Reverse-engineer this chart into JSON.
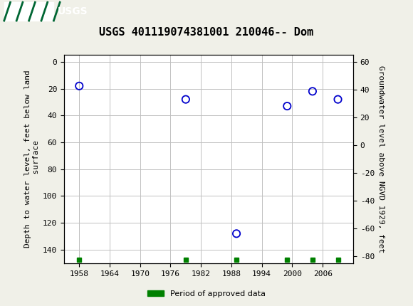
{
  "title": "USGS 401119074381001 210046-- Dom",
  "ylabel_left": "Depth to water level, feet below land\n surface",
  "ylabel_right": "Groundwater level above NGVD 1929, feet",
  "ylim_left": [
    150,
    -5
  ],
  "ylim_right": [
    -85,
    65
  ],
  "xlim": [
    1955,
    2012
  ],
  "xticks": [
    1958,
    1964,
    1970,
    1976,
    1982,
    1988,
    1994,
    2000,
    2006
  ],
  "yticks_left": [
    0,
    20,
    40,
    60,
    80,
    100,
    120,
    140
  ],
  "yticks_right": [
    60,
    40,
    20,
    0,
    -20,
    -40,
    -60,
    -80
  ],
  "data_x": [
    1958,
    1979,
    1989,
    1999,
    2004,
    2009
  ],
  "data_y": [
    18,
    28,
    128,
    33,
    22,
    28
  ],
  "green_markers_x": [
    1958,
    1979,
    1989,
    1999,
    2004,
    2009
  ],
  "point_color": "#0000cc",
  "grid_color": "#c0c0c0",
  "background_color": "#ffffff",
  "header_color": "#006633",
  "title_fontsize": 11,
  "axis_fontsize": 8,
  "tick_fontsize": 8,
  "legend_label": "Period of approved data",
  "legend_color": "#008000",
  "usgs_logo_text": "USGS"
}
